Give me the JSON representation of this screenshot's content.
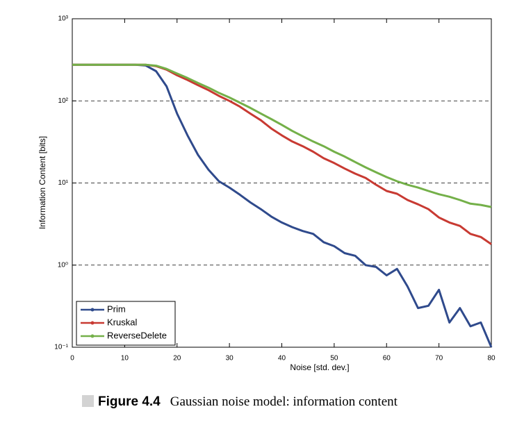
{
  "chart_data": {
    "type": "line",
    "xlabel": "Noise [std. dev.]",
    "ylabel": "Information Content [bits]",
    "caption_label": "Figure 4.4",
    "caption": "Gaussian noise model: information content",
    "x": [
      0,
      2,
      4,
      6,
      8,
      10,
      12,
      14,
      16,
      18,
      20,
      22,
      24,
      26,
      28,
      30,
      32,
      34,
      36,
      38,
      40,
      42,
      44,
      46,
      48,
      50,
      52,
      54,
      56,
      58,
      60,
      62,
      64,
      66,
      68,
      70,
      72,
      74,
      76,
      78,
      80
    ],
    "series": [
      {
        "name": "Prim",
        "color": "#2f4a8c",
        "values": [
          275,
          275,
          275,
          275,
          275,
          275,
          275,
          270,
          230,
          150,
          70,
          38,
          22,
          14.5,
          10.5,
          8.8,
          7.2,
          5.8,
          4.8,
          3.9,
          3.3,
          2.9,
          2.6,
          2.4,
          1.9,
          1.7,
          1.4,
          1.3,
          1.0,
          0.95,
          0.75,
          0.9,
          0.55,
          0.3,
          0.32,
          0.5,
          0.2,
          0.3,
          0.18,
          0.2,
          0.1
        ]
      },
      {
        "name": "Kruskal",
        "color": "#c83a32",
        "values": [
          275,
          275,
          275,
          275,
          275,
          275,
          275,
          275,
          265,
          240,
          205,
          180,
          155,
          135,
          115,
          100,
          85,
          70,
          58,
          46,
          38,
          32,
          28,
          24,
          20,
          17.5,
          15,
          13,
          11.5,
          9.5,
          8,
          7.4,
          6.2,
          5.5,
          4.8,
          3.8,
          3.3,
          3,
          2.4,
          2.2,
          1.8
        ]
      },
      {
        "name": "ReverseDelete",
        "color": "#74b049",
        "values": [
          275,
          275,
          275,
          275,
          275,
          275,
          275,
          275,
          268,
          245,
          215,
          190,
          165,
          145,
          125,
          110,
          95,
          82,
          70,
          60,
          51,
          43,
          37,
          32,
          28,
          24,
          21,
          18,
          15.5,
          13.5,
          11.8,
          10.5,
          9.5,
          8.8,
          8,
          7.3,
          6.8,
          6.2,
          5.6,
          5.4,
          5.1
        ]
      }
    ],
    "xlim": [
      0,
      80
    ],
    "xticks": [
      0,
      10,
      20,
      30,
      40,
      50,
      60,
      70,
      80
    ],
    "ylim": [
      0.1,
      1000
    ],
    "log_y": true,
    "yticks": [
      {
        "value": 0.1,
        "label": "10⁻¹"
      },
      {
        "value": 1,
        "label": "10⁰"
      },
      {
        "value": 10,
        "label": "10¹"
      },
      {
        "value": 100,
        "label": "10²"
      },
      {
        "value": 1000,
        "label": "10³"
      }
    ],
    "grid": true,
    "legend": "lower left"
  }
}
